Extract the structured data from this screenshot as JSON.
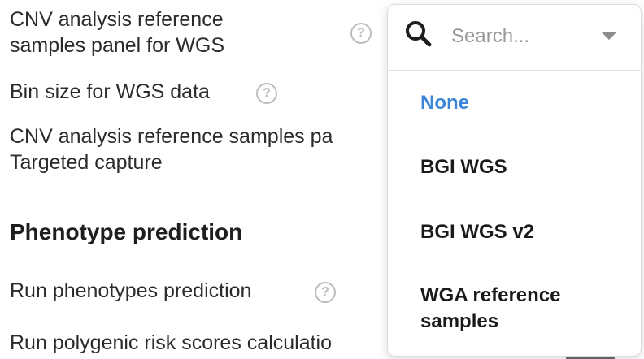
{
  "settings": {
    "cnv_wgs_label_line1": "CNV analysis reference",
    "cnv_wgs_label_line2": "samples panel for WGS",
    "bin_size_label": "Bin size for WGS data",
    "cnv_targeted_label_line1": "CNV analysis reference samples pa",
    "cnv_targeted_label_line2": "Targeted capture",
    "help_glyph": "?"
  },
  "phenotype_section": {
    "title": "Phenotype prediction",
    "run_phenotypes_label": "Run phenotypes prediction",
    "run_prs_label": "Run polygenic risk scores calculatio"
  },
  "dropdown": {
    "search_placeholder": "Search...",
    "search_value": "",
    "options": [
      {
        "label": "None",
        "selected": true
      },
      {
        "label": "BGI WGS",
        "selected": false
      },
      {
        "label": "BGI WGS v2",
        "selected": false
      },
      {
        "label_line1": "WGA reference",
        "label_line2": "samples",
        "selected": false
      }
    ]
  },
  "colors": {
    "selected_option": "#3b86d8",
    "help_icon": "#bdbdbd",
    "toggle_off": "#6b6b6b"
  },
  "icons": {
    "search": "search-icon",
    "caret": "chevron-down-icon",
    "help": "help-circle-icon"
  }
}
